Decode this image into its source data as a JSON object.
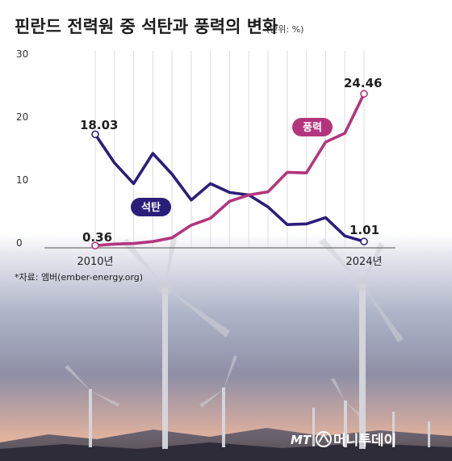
{
  "title": "핀란드 전력원 중 석탄과 풍력의 변화",
  "unit": "(단위: %)",
  "source": "*자료: 엠버(ember-energy.org)",
  "logo": {
    "mark": "MT",
    "name": "머니투데이"
  },
  "colors": {
    "coal": "#2b1e7a",
    "wind": "#b3357e"
  },
  "chart_data": {
    "type": "line",
    "x": [
      2010,
      2011,
      2012,
      2013,
      2014,
      2015,
      2016,
      2017,
      2018,
      2019,
      2020,
      2021,
      2022,
      2023,
      2024
    ],
    "x_tick_labels": [
      "2010년",
      "2024년"
    ],
    "ylim": [
      0,
      30
    ],
    "y_ticks": [
      0,
      10,
      20,
      30
    ],
    "grid": "vertical",
    "series": [
      {
        "name": "석탄",
        "color": "#2b1e7a",
        "values": [
          18.03,
          13.5,
          10.2,
          15.0,
          11.7,
          7.6,
          10.2,
          8.8,
          8.4,
          6.5,
          3.7,
          3.8,
          4.8,
          1.9,
          1.01
        ]
      },
      {
        "name": "풍력",
        "color": "#b3357e",
        "values": [
          0.36,
          0.6,
          0.7,
          1.0,
          1.6,
          3.6,
          4.7,
          7.4,
          8.4,
          8.9,
          12.0,
          11.9,
          16.8,
          18.2,
          24.46
        ]
      }
    ],
    "data_labels": {
      "coal_start": "18.03",
      "coal_end": "1.01",
      "wind_start": "0.36",
      "wind_end": "24.46"
    }
  }
}
